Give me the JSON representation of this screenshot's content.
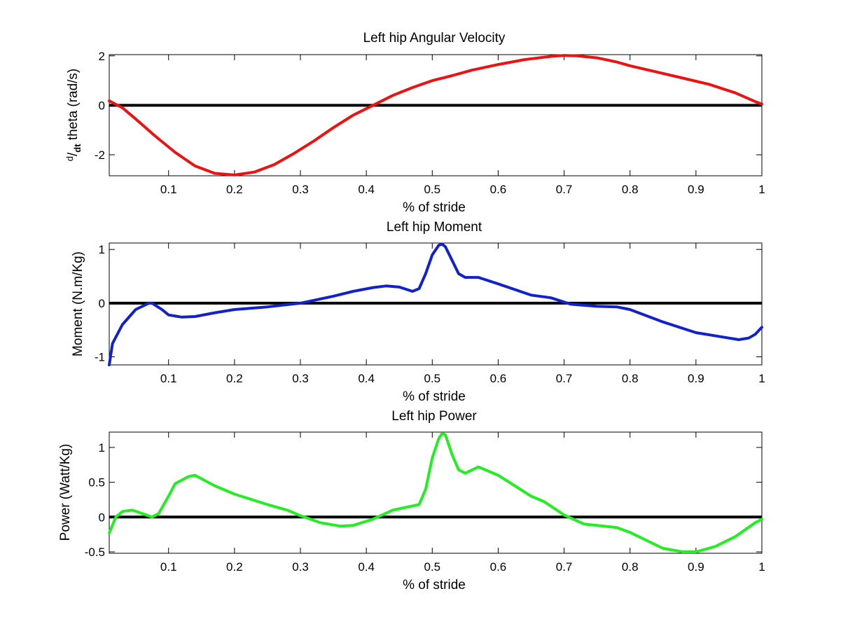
{
  "chart_data": [
    {
      "type": "line",
      "title": "Left hip Angular Velocity",
      "xlabel": "% of stride",
      "ylabel": {
        "d": "d",
        "slash": "/",
        "dt": "dt",
        "rest": " theta (rad/s)"
      },
      "xlim": [
        0.01,
        1.0
      ],
      "ylim": [
        -2.85,
        2.05
      ],
      "xticks": [
        "0.1",
        "0.2",
        "0.3",
        "0.4",
        "0.5",
        "0.6",
        "0.7",
        "0.8",
        "0.9",
        "1"
      ],
      "yticks": [
        "-2",
        "0",
        "2"
      ],
      "ytick_values": [
        -2,
        0,
        2
      ],
      "xtick_values": [
        0.1,
        0.2,
        0.3,
        0.4,
        0.5,
        0.6,
        0.7,
        0.8,
        0.9,
        1.0
      ],
      "reference_line_y": 0,
      "series": [
        {
          "color": "#ee1111",
          "x": [
            0.01,
            0.03,
            0.05,
            0.08,
            0.11,
            0.14,
            0.17,
            0.2,
            0.23,
            0.26,
            0.29,
            0.32,
            0.35,
            0.38,
            0.41,
            0.44,
            0.47,
            0.5,
            0.53,
            0.56,
            0.6,
            0.64,
            0.68,
            0.7,
            0.72,
            0.75,
            0.78,
            0.8,
            0.84,
            0.88,
            0.92,
            0.96,
            0.99,
            1.0
          ],
          "y": [
            0.18,
            -0.1,
            -0.55,
            -1.25,
            -1.9,
            -2.45,
            -2.75,
            -2.82,
            -2.7,
            -2.4,
            -1.95,
            -1.45,
            -0.9,
            -0.4,
            0.0,
            0.4,
            0.72,
            1.0,
            1.2,
            1.42,
            1.65,
            1.85,
            1.98,
            2.02,
            2.0,
            1.92,
            1.75,
            1.6,
            1.35,
            1.1,
            0.85,
            0.5,
            0.15,
            0.05
          ]
        }
      ]
    },
    {
      "type": "line",
      "title": "Left hip Moment",
      "xlabel": "% of stride",
      "ylabel": "Moment (N.m/Kg)",
      "xlim": [
        0.01,
        1.0
      ],
      "ylim": [
        -1.15,
        1.12
      ],
      "xticks": [
        "0.1",
        "0.2",
        "0.3",
        "0.4",
        "0.5",
        "0.6",
        "0.7",
        "0.8",
        "0.9",
        "1"
      ],
      "yticks": [
        "-1",
        "0",
        "1"
      ],
      "ytick_values": [
        -1,
        0,
        1
      ],
      "xtick_values": [
        0.1,
        0.2,
        0.3,
        0.4,
        0.5,
        0.6,
        0.7,
        0.8,
        0.9,
        1.0
      ],
      "reference_line_y": 0,
      "series": [
        {
          "color": "#1122cc",
          "x": [
            0.01,
            0.015,
            0.03,
            0.05,
            0.07,
            0.075,
            0.09,
            0.1,
            0.12,
            0.14,
            0.17,
            0.2,
            0.25,
            0.3,
            0.35,
            0.38,
            0.41,
            0.43,
            0.45,
            0.47,
            0.48,
            0.49,
            0.5,
            0.51,
            0.515,
            0.52,
            0.53,
            0.54,
            0.55,
            0.57,
            0.6,
            0.65,
            0.68,
            0.71,
            0.75,
            0.78,
            0.8,
            0.85,
            0.9,
            0.95,
            0.965,
            0.98,
            0.99,
            1.0
          ],
          "y": [
            -1.15,
            -0.75,
            -0.4,
            -0.12,
            0.0,
            0.0,
            -0.12,
            -0.22,
            -0.26,
            -0.25,
            -0.18,
            -0.12,
            -0.07,
            0.0,
            0.13,
            0.22,
            0.29,
            0.32,
            0.3,
            0.22,
            0.27,
            0.55,
            0.9,
            1.08,
            1.1,
            1.05,
            0.8,
            0.55,
            0.48,
            0.48,
            0.36,
            0.15,
            0.1,
            -0.02,
            -0.06,
            -0.07,
            -0.12,
            -0.35,
            -0.55,
            -0.65,
            -0.68,
            -0.65,
            -0.58,
            -0.45
          ]
        }
      ]
    },
    {
      "type": "line",
      "title": "Left hip Power",
      "xlabel": "% of stride",
      "ylabel": "Power (Watt/Kg)",
      "xlim": [
        0.01,
        1.0
      ],
      "ylim": [
        -0.52,
        1.22
      ],
      "xticks": [
        "0.1",
        "0.2",
        "0.3",
        "0.4",
        "0.5",
        "0.6",
        "0.7",
        "0.8",
        "0.9",
        "1"
      ],
      "yticks": [
        "-0.5",
        "0",
        "0.5",
        "1"
      ],
      "ytick_values": [
        -0.5,
        0,
        0.5,
        1
      ],
      "xtick_values": [
        0.1,
        0.2,
        0.3,
        0.4,
        0.5,
        0.6,
        0.7,
        0.8,
        0.9,
        1.0
      ],
      "reference_line_y": 0,
      "series": [
        {
          "color": "#22ee22",
          "x": [
            0.01,
            0.02,
            0.03,
            0.045,
            0.06,
            0.075,
            0.085,
            0.1,
            0.11,
            0.13,
            0.14,
            0.17,
            0.2,
            0.25,
            0.28,
            0.3,
            0.33,
            0.36,
            0.38,
            0.41,
            0.44,
            0.46,
            0.48,
            0.49,
            0.5,
            0.51,
            0.515,
            0.52,
            0.53,
            0.54,
            0.55,
            0.57,
            0.6,
            0.62,
            0.65,
            0.67,
            0.7,
            0.73,
            0.75,
            0.78,
            0.8,
            0.85,
            0.88,
            0.9,
            0.93,
            0.96,
            0.99,
            1.0
          ],
          "y": [
            -0.23,
            0.0,
            0.08,
            0.1,
            0.05,
            0.0,
            0.05,
            0.3,
            0.48,
            0.58,
            0.6,
            0.45,
            0.33,
            0.18,
            0.1,
            0.02,
            -0.08,
            -0.13,
            -0.12,
            -0.03,
            0.1,
            0.14,
            0.18,
            0.4,
            0.85,
            1.13,
            1.2,
            1.18,
            0.9,
            0.68,
            0.63,
            0.72,
            0.6,
            0.48,
            0.3,
            0.22,
            0.03,
            -0.1,
            -0.12,
            -0.15,
            -0.22,
            -0.45,
            -0.5,
            -0.5,
            -0.42,
            -0.28,
            -0.08,
            -0.03
          ]
        }
      ]
    }
  ]
}
